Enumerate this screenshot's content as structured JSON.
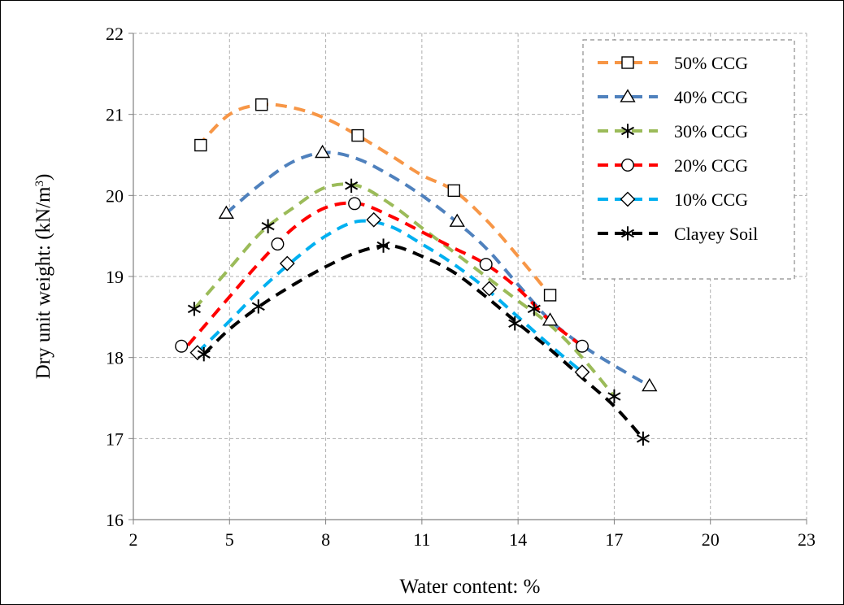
{
  "chart_data": {
    "type": "line",
    "title": "",
    "xlabel": "Water content: %",
    "ylabel_main": "Dry unit weight: (kN/m",
    "ylabel_sup": "3",
    "ylabel_close": ")",
    "xlim": [
      2,
      23
    ],
    "ylim": [
      16,
      22
    ],
    "xticks": [
      2,
      5,
      8,
      11,
      14,
      17,
      20,
      23
    ],
    "yticks": [
      16,
      17,
      18,
      19,
      20,
      21,
      22
    ],
    "grid": true,
    "legend_position": "top-right",
    "series": [
      {
        "name": "50% CCG",
        "color": "#F79646",
        "marker": "square",
        "points": [
          [
            4.1,
            20.62
          ],
          [
            6.0,
            21.12
          ],
          [
            9.0,
            20.74
          ],
          [
            12.0,
            20.06
          ],
          [
            15.0,
            18.77
          ]
        ],
        "curve": [
          [
            4.0,
            20.6
          ],
          [
            5.0,
            21.0
          ],
          [
            6.0,
            21.12
          ],
          [
            7.0,
            21.08
          ],
          [
            8.0,
            20.95
          ],
          [
            9.0,
            20.74
          ],
          [
            10.0,
            20.5
          ],
          [
            11.0,
            20.25
          ],
          [
            12.0,
            20.06
          ],
          [
            13.0,
            19.7
          ],
          [
            14.0,
            19.25
          ],
          [
            15.0,
            18.77
          ]
        ]
      },
      {
        "name": "40% CCG",
        "color": "#4F81BD",
        "marker": "triangle",
        "points": [
          [
            4.9,
            19.78
          ],
          [
            7.9,
            20.53
          ],
          [
            12.1,
            19.68
          ],
          [
            15.0,
            18.46
          ],
          [
            18.1,
            17.65
          ]
        ],
        "curve": [
          [
            4.9,
            19.78
          ],
          [
            6.0,
            20.15
          ],
          [
            7.0,
            20.42
          ],
          [
            8.0,
            20.53
          ],
          [
            9.0,
            20.45
          ],
          [
            10.0,
            20.25
          ],
          [
            11.0,
            20.0
          ],
          [
            12.0,
            19.7
          ],
          [
            13.0,
            19.35
          ],
          [
            14.0,
            18.9
          ],
          [
            15.0,
            18.46
          ],
          [
            16.0,
            18.15
          ],
          [
            17.0,
            17.9
          ],
          [
            18.1,
            17.65
          ]
        ]
      },
      {
        "name": "30% CCG",
        "color": "#9BBB59",
        "marker": "star",
        "points": [
          [
            3.9,
            18.6
          ],
          [
            6.2,
            19.62
          ],
          [
            8.8,
            20.12
          ],
          [
            14.5,
            18.6
          ],
          [
            17.0,
            17.52
          ]
        ],
        "curve": [
          [
            3.9,
            18.6
          ],
          [
            5.0,
            19.1
          ],
          [
            6.0,
            19.55
          ],
          [
            7.0,
            19.85
          ],
          [
            8.0,
            20.1
          ],
          [
            9.0,
            20.12
          ],
          [
            10.0,
            19.9
          ],
          [
            11.0,
            19.6
          ],
          [
            12.0,
            19.3
          ],
          [
            13.0,
            19.0
          ],
          [
            14.0,
            18.7
          ],
          [
            15.0,
            18.4
          ],
          [
            16.0,
            18.0
          ],
          [
            17.0,
            17.52
          ]
        ]
      },
      {
        "name": "20% CCG",
        "color": "#FF0000",
        "marker": "circle",
        "points": [
          [
            3.5,
            18.14
          ],
          [
            6.5,
            19.4
          ],
          [
            8.9,
            19.9
          ],
          [
            13.0,
            19.15
          ],
          [
            16.0,
            18.14
          ]
        ],
        "curve": [
          [
            3.7,
            18.15
          ],
          [
            5.0,
            18.75
          ],
          [
            6.0,
            19.2
          ],
          [
            7.0,
            19.6
          ],
          [
            8.0,
            19.85
          ],
          [
            9.0,
            19.9
          ],
          [
            10.0,
            19.75
          ],
          [
            11.0,
            19.55
          ],
          [
            12.0,
            19.35
          ],
          [
            13.0,
            19.15
          ],
          [
            14.0,
            18.85
          ],
          [
            15.0,
            18.45
          ],
          [
            16.0,
            18.14
          ]
        ]
      },
      {
        "name": "10% CCG",
        "color": "#00B0F0",
        "marker": "diamond",
        "points": [
          [
            4.0,
            18.06
          ],
          [
            6.8,
            19.16
          ],
          [
            9.5,
            19.7
          ],
          [
            13.1,
            18.85
          ],
          [
            16.0,
            17.82
          ]
        ],
        "curve": [
          [
            4.0,
            18.06
          ],
          [
            5.0,
            18.45
          ],
          [
            6.0,
            18.85
          ],
          [
            7.0,
            19.2
          ],
          [
            8.0,
            19.5
          ],
          [
            9.0,
            19.68
          ],
          [
            10.0,
            19.62
          ],
          [
            11.0,
            19.4
          ],
          [
            12.0,
            19.15
          ],
          [
            13.0,
            18.85
          ],
          [
            14.0,
            18.5
          ],
          [
            15.0,
            18.15
          ],
          [
            16.0,
            17.82
          ]
        ]
      },
      {
        "name": "Clayey Soil",
        "color": "#000000",
        "marker": "star",
        "points": [
          [
            4.2,
            18.04
          ],
          [
            5.9,
            18.63
          ],
          [
            9.8,
            19.38
          ],
          [
            13.9,
            18.42
          ],
          [
            17.9,
            17.0
          ]
        ],
        "curve": [
          [
            4.2,
            18.04
          ],
          [
            5.0,
            18.35
          ],
          [
            6.0,
            18.65
          ],
          [
            7.0,
            18.9
          ],
          [
            8.0,
            19.12
          ],
          [
            9.0,
            19.3
          ],
          [
            10.0,
            19.38
          ],
          [
            11.0,
            19.25
          ],
          [
            12.0,
            19.05
          ],
          [
            13.0,
            18.75
          ],
          [
            14.0,
            18.42
          ],
          [
            15.0,
            18.1
          ],
          [
            16.0,
            17.75
          ],
          [
            17.0,
            17.4
          ],
          [
            17.9,
            17.0
          ]
        ]
      }
    ]
  }
}
